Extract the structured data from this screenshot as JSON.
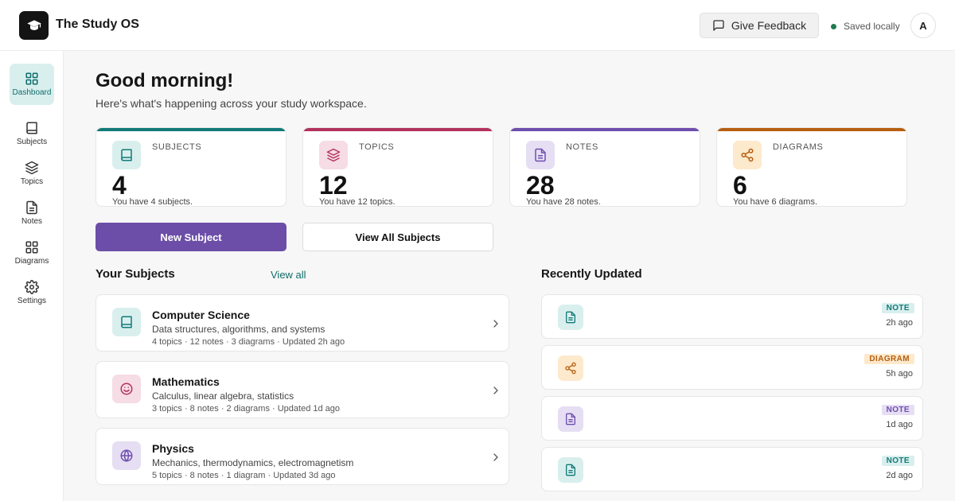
{
  "app": {
    "title": "The Study OS"
  },
  "header": {
    "feedback_label": "Give Feedback",
    "saved_status": "Saved locally",
    "avatar_initial": "A"
  },
  "sidebar": {
    "items": [
      {
        "label": "Dashboard",
        "icon": "grid-icon",
        "active": true
      },
      {
        "label": "Subjects",
        "icon": "book-icon"
      },
      {
        "label": "Topics",
        "icon": "layers-icon"
      },
      {
        "label": "Notes",
        "icon": "file-text-icon"
      },
      {
        "label": "Diagrams",
        "icon": "grid-icon"
      },
      {
        "label": "Settings",
        "icon": "gear-icon"
      }
    ]
  },
  "main": {
    "greeting": "Good morning!",
    "subtitle": "Here's what's happening across your study workspace.",
    "stats": [
      {
        "label": "SUBJECTS",
        "value": "4",
        "desc": "You have 4 subjects.",
        "color": "#127a78",
        "icon": "book-icon"
      },
      {
        "label": "TOPICS",
        "value": "12",
        "desc": "You have 12 topics.",
        "color": "#b3325e",
        "icon": "layers-icon"
      },
      {
        "label": "NOTES",
        "value": "28",
        "desc": "You have 28 notes.",
        "color": "#6e4eae",
        "icon": "file-text-icon"
      },
      {
        "label": "DIAGRAMS",
        "value": "6",
        "desc": "You have 6 diagrams.",
        "color": "#b65f10",
        "icon": "share-icon"
      }
    ],
    "new_subject_label": "New Subject",
    "view_all_subjects_label": "View All Subjects",
    "your_subjects_title": "Your Subjects",
    "view_all_label": "View all",
    "recently_updated_title": "Recently Updated",
    "subjects": [
      {
        "name": "Computer Science",
        "desc": "Data structures, algorithms, and systems",
        "meta": "4 topics · 12 notes · 3 diagrams · Updated 2h ago",
        "icon": "book-icon"
      },
      {
        "name": "Mathematics",
        "desc": "Calculus, linear algebra, statistics",
        "meta": "3 topics · 8 notes · 2 diagrams · Updated 1d ago",
        "icon": "smile-icon"
      },
      {
        "name": "Physics",
        "desc": "Mechanics, thermodynamics, electromagnetism",
        "meta": "5 topics · 8 notes · 1 diagram · Updated 3d ago",
        "icon": "globe-icon"
      }
    ],
    "recent": [
      {
        "badge": "NOTE",
        "time": "2h ago",
        "icon": "file-text-icon"
      },
      {
        "badge": "DIAGRAM",
        "time": "5h ago",
        "icon": "share-icon"
      },
      {
        "badge": "NOTE",
        "time": "1d ago",
        "icon": "file-text-icon"
      },
      {
        "badge": "NOTE",
        "time": "2d ago",
        "icon": "file-text-icon"
      }
    ]
  },
  "colors": {
    "accent": "#6c4ea8",
    "teal": "#0e6e6b",
    "saved_dot": "#1f7a4e"
  }
}
